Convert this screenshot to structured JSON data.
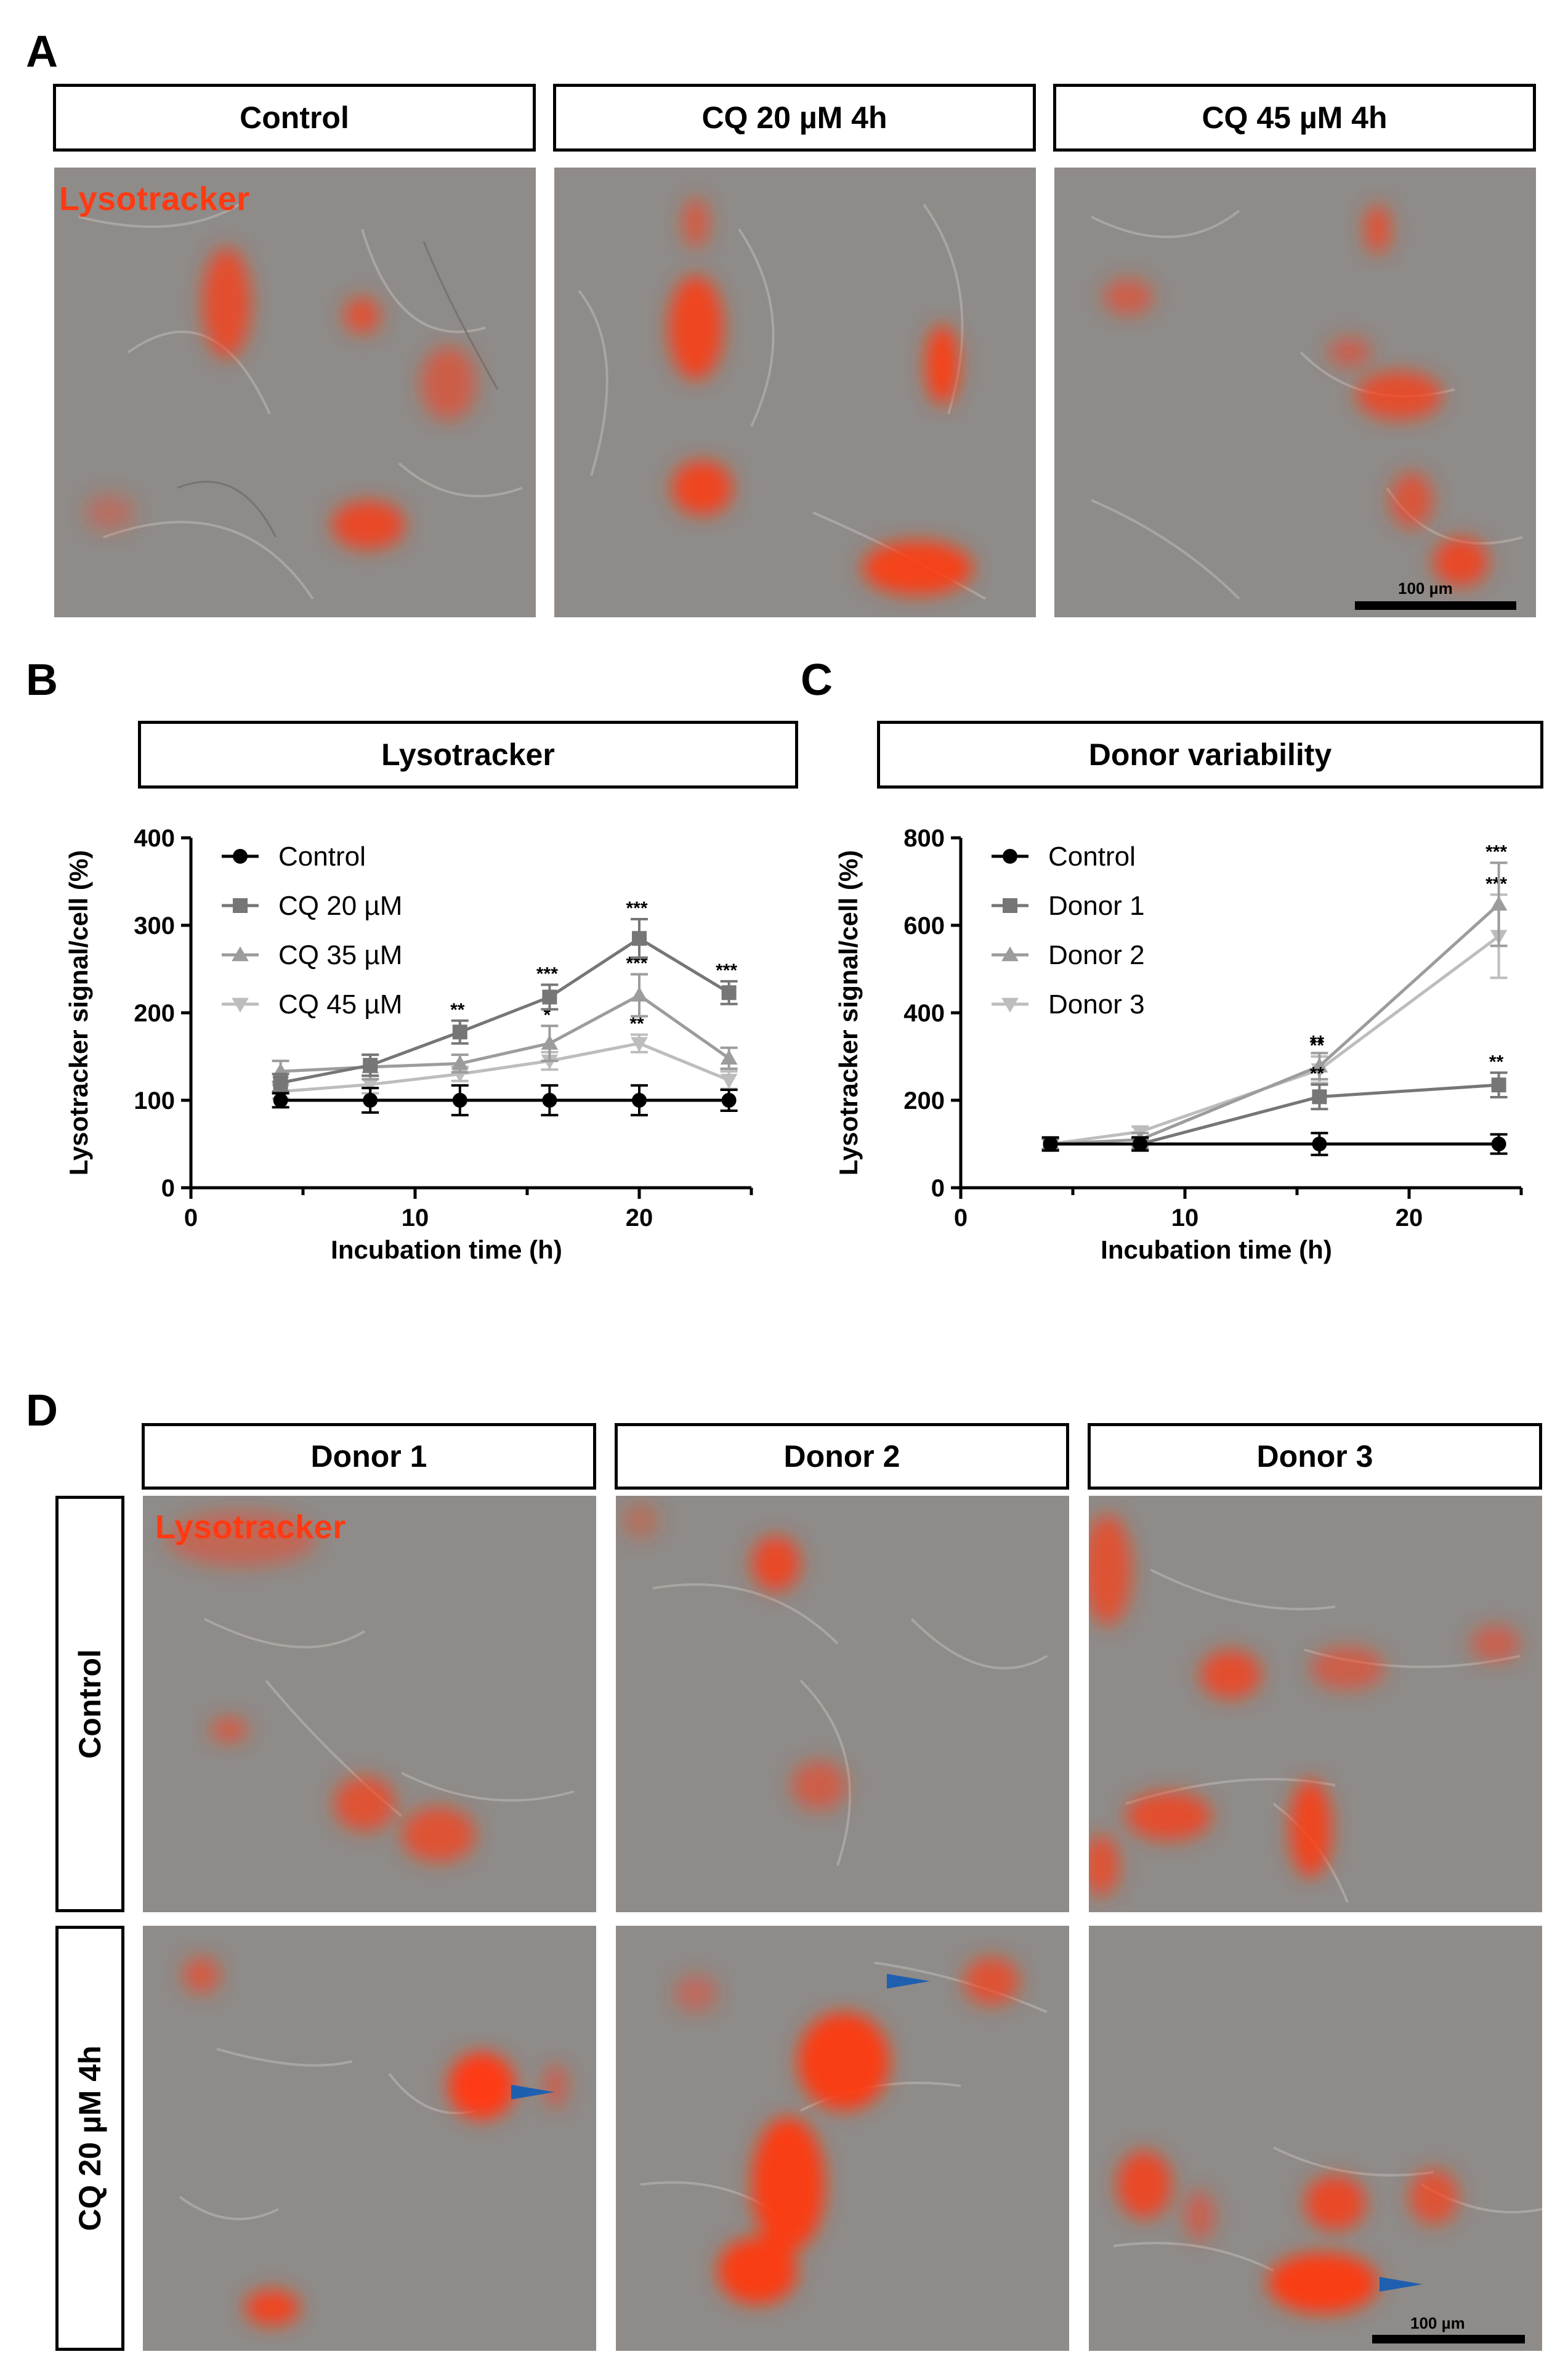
{
  "panels": {
    "A": {
      "letter": "A",
      "columns": [
        "Control",
        "CQ 20 µM 4h",
        "CQ 45 µM 4h"
      ],
      "stain_label": "Lysotracker",
      "scale_label": "100 µm"
    },
    "B": {
      "letter": "B",
      "box_title": "Lysotracker"
    },
    "C": {
      "letter": "C",
      "box_title": "Donor variability"
    },
    "D": {
      "letter": "D",
      "columns": [
        "Donor 1",
        "Donor 2",
        "Donor 3"
      ],
      "rows": [
        "Control",
        "CQ 20 µM 4h"
      ],
      "stain_label": "Lysotracker",
      "scale_label": "100 µm"
    }
  },
  "colors": {
    "lysotracker": "#ff3a12",
    "arrowhead": "#1f5fb0"
  },
  "chart_data": [
    {
      "type": "line",
      "title": "Lysotracker",
      "xlabel": "Incubation time (h)",
      "ylabel": "Lysotracker signal/cell (%)",
      "xlim": [
        0,
        25
      ],
      "ylim": [
        0,
        400
      ],
      "xticks": [
        0,
        10,
        20
      ],
      "yticks": [
        0,
        100,
        200,
        300,
        400
      ],
      "legend_position": "top-left",
      "series": [
        {
          "name": "Control",
          "marker": "circle",
          "color": "#000000",
          "x": [
            4,
            8,
            12,
            16,
            20,
            24
          ],
          "y": [
            100,
            100,
            100,
            100,
            100,
            100
          ],
          "err": [
            8,
            14,
            17,
            17,
            17,
            12
          ],
          "sig": [
            "",
            "",
            "",
            "",
            "",
            ""
          ]
        },
        {
          "name": "CQ 20 µM",
          "marker": "square",
          "color": "#767676",
          "x": [
            4,
            8,
            12,
            16,
            20,
            24
          ],
          "y": [
            120,
            140,
            178,
            218,
            285,
            223
          ],
          "err": [
            10,
            12,
            13,
            14,
            22,
            13
          ],
          "sig": [
            "",
            "",
            "**",
            "***",
            "***",
            "***"
          ]
        },
        {
          "name": "CQ 35 µM",
          "marker": "triangle-up",
          "color": "#9c9c9c",
          "x": [
            4,
            8,
            12,
            16,
            20,
            24
          ],
          "y": [
            133,
            138,
            142,
            165,
            220,
            148
          ],
          "err": [
            12,
            14,
            10,
            20,
            24,
            12
          ],
          "sig": [
            "",
            "",
            "",
            "*",
            "***",
            ""
          ]
        },
        {
          "name": "CQ 45 µM",
          "marker": "triangle-down",
          "color": "#bdbdbd",
          "x": [
            4,
            8,
            12,
            16,
            20,
            24
          ],
          "y": [
            110,
            118,
            130,
            145,
            165,
            123
          ],
          "err": [
            8,
            10,
            8,
            10,
            10,
            10
          ],
          "sig": [
            "",
            "",
            "",
            "",
            "**",
            ""
          ]
        }
      ]
    },
    {
      "type": "line",
      "title": "Donor variability",
      "xlabel": "Incubation time (h)",
      "ylabel": "Lysotracker signal/cell (%)",
      "xlim": [
        0,
        25
      ],
      "ylim": [
        0,
        800
      ],
      "xticks": [
        0,
        10,
        20
      ],
      "yticks": [
        0,
        200,
        400,
        600,
        800
      ],
      "legend_position": "top-left",
      "series": [
        {
          "name": "Control",
          "marker": "circle",
          "color": "#000000",
          "x": [
            4,
            8,
            16,
            24
          ],
          "y": [
            100,
            100,
            100,
            100
          ],
          "err": [
            15,
            15,
            25,
            22
          ],
          "sig": [
            "",
            "",
            "",
            ""
          ]
        },
        {
          "name": "Donor 1",
          "marker": "square",
          "color": "#767676",
          "x": [
            4,
            8,
            16,
            24
          ],
          "y": [
            100,
            100,
            208,
            235
          ],
          "err": [
            12,
            12,
            28,
            28
          ],
          "sig": [
            "",
            "",
            "**",
            "**"
          ]
        },
        {
          "name": "Donor 2",
          "marker": "triangle-up",
          "color": "#9c9c9c",
          "x": [
            4,
            8,
            16,
            24
          ],
          "y": [
            100,
            110,
            278,
            648
          ],
          "err": [
            12,
            15,
            30,
            95
          ],
          "sig": [
            "",
            "",
            "**",
            "***"
          ]
        },
        {
          "name": "Donor 3",
          "marker": "triangle-down",
          "color": "#bdbdbd",
          "x": [
            4,
            8,
            16,
            24
          ],
          "y": [
            100,
            128,
            270,
            575
          ],
          "err": [
            12,
            12,
            30,
            95
          ],
          "sig": [
            "",
            "",
            "**",
            "***"
          ]
        }
      ]
    }
  ]
}
